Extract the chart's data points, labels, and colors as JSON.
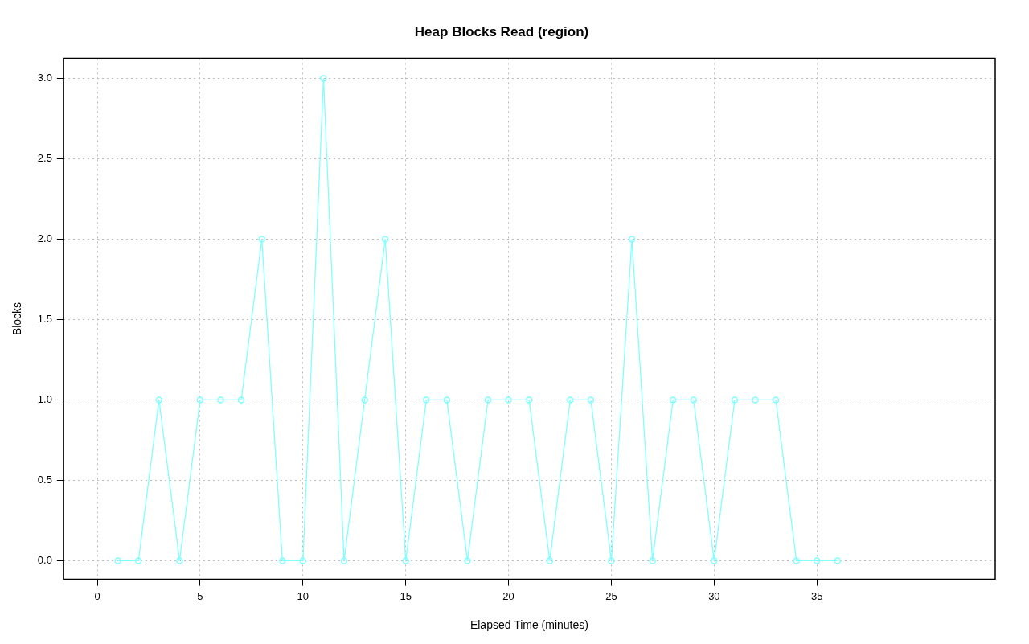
{
  "chart_data": {
    "type": "line",
    "title": "Heap Blocks Read (region)",
    "xlabel": "Elapsed Time (minutes)",
    "ylabel": "Blocks",
    "x": [
      1,
      2,
      3,
      4,
      5,
      6,
      7,
      8,
      9,
      10,
      11,
      12,
      13,
      14,
      15,
      16,
      17,
      18,
      19,
      20,
      21,
      22,
      23,
      24,
      25,
      26,
      27,
      28,
      29,
      30,
      31,
      32,
      33,
      34,
      35,
      36
    ],
    "series": [
      {
        "color": "#80ffff",
        "values": [
          0,
          0,
          1,
          0,
          1,
          1,
          1,
          2,
          0,
          0,
          3,
          0,
          1,
          2,
          0,
          1,
          1,
          0,
          1,
          1,
          1,
          0,
          1,
          1,
          0,
          2,
          0,
          1,
          1,
          0,
          1,
          1,
          1,
          0,
          0,
          0
        ]
      }
    ],
    "xlim": [
      -1.65,
      43.67
    ],
    "ylim": [
      -0.116,
      3.126
    ],
    "xticks": [
      0,
      5,
      10,
      15,
      20,
      25,
      30,
      35
    ],
    "yticks": [
      {
        "value": 0,
        "label": "0.0"
      },
      {
        "value": 0.5,
        "label": "0.5"
      },
      {
        "value": 1,
        "label": "1.0"
      },
      {
        "value": 1.5,
        "label": "1.5"
      },
      {
        "value": 2,
        "label": "2.0"
      },
      {
        "value": 2.5,
        "label": "2.5"
      },
      {
        "value": 3,
        "label": "3.0"
      }
    ],
    "grid": true,
    "marker": "circle",
    "line_style": "solid",
    "legend": false
  }
}
